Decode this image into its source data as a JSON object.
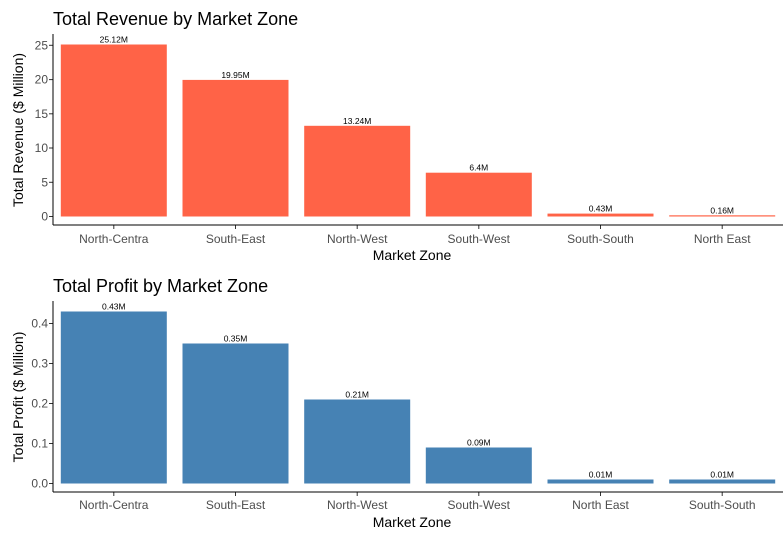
{
  "chart_data": [
    {
      "type": "bar",
      "title": "Total Revenue by Market Zone",
      "xlabel": "Market Zone",
      "ylabel": "Total Revenue ($ Million)",
      "categories": [
        "North-Centra",
        "South-East",
        "North-West",
        "South-West",
        "South-South",
        "North East"
      ],
      "values": [
        25.12,
        19.95,
        13.24,
        6.4,
        0.43,
        0.16
      ],
      "data_labels": [
        "25.12M",
        "19.95M",
        "13.24M",
        "6.4M",
        "0.43M",
        "0.16M"
      ],
      "yticks": [
        0,
        5,
        10,
        15,
        20,
        25
      ],
      "ytick_labels": [
        "0",
        "5",
        "10",
        "15",
        "20",
        "25"
      ],
      "ylim": [
        0,
        26.4
      ],
      "color": "#ff6347",
      "grid": false,
      "legend": "none"
    },
    {
      "type": "bar",
      "title": "Total Profit by Market Zone",
      "xlabel": "Market Zone",
      "ylabel": "Total Profit ($ Million)",
      "categories": [
        "North-Centra",
        "South-East",
        "North-West",
        "South-West",
        "North East",
        "South-South"
      ],
      "values": [
        0.43,
        0.35,
        0.21,
        0.09,
        0.01,
        0.01
      ],
      "data_labels": [
        "0.43M",
        "0.35M",
        "0.21M",
        "0.09M",
        "0.01M",
        "0.01M"
      ],
      "yticks": [
        0.0,
        0.1,
        0.2,
        0.3,
        0.4
      ],
      "ytick_labels": [
        "0.0",
        "0.1",
        "0.2",
        "0.3",
        "0.4"
      ],
      "ylim": [
        0,
        0.452
      ],
      "color": "#4682b4",
      "grid": false,
      "legend": "none"
    }
  ]
}
